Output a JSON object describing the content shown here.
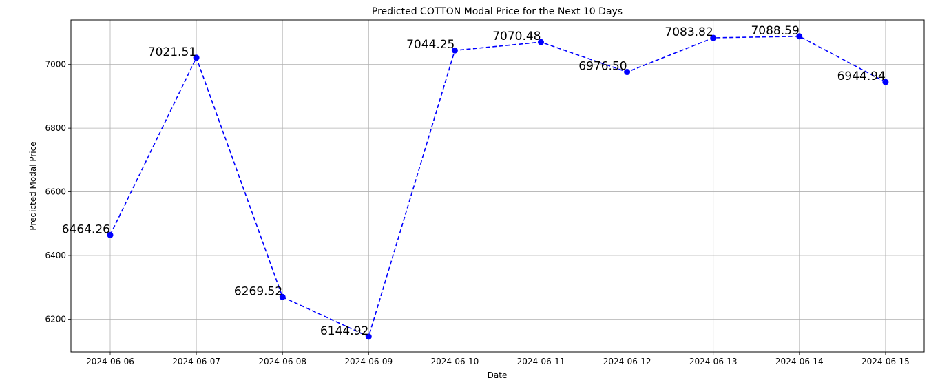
{
  "chart_data": {
    "type": "line",
    "title": "Predicted COTTON Modal Price for the Next 10 Days",
    "xlabel": "Date",
    "ylabel": "Predicted Modal Price",
    "categories": [
      "2024-06-06",
      "2024-06-07",
      "2024-06-08",
      "2024-06-09",
      "2024-06-10",
      "2024-06-11",
      "2024-06-12",
      "2024-06-13",
      "2024-06-14",
      "2024-06-15"
    ],
    "series": [
      {
        "values": [
          6464.26,
          7021.51,
          6269.52,
          6144.92,
          7044.25,
          7070.48,
          6976.5,
          7083.82,
          7088.59,
          6944.94
        ],
        "labels": [
          "6464.26",
          "7021.51",
          "6269.52",
          "6144.92",
          "7044.25",
          "7070.48",
          "6976.50",
          "7083.82",
          "7088.59",
          "6944.94"
        ],
        "color": "#0000ff",
        "line_style": "dashed",
        "marker": "circle"
      }
    ],
    "yticks": [
      6200,
      6400,
      6600,
      6800,
      7000
    ],
    "ylim": [
      6097,
      7140
    ],
    "grid": true
  }
}
